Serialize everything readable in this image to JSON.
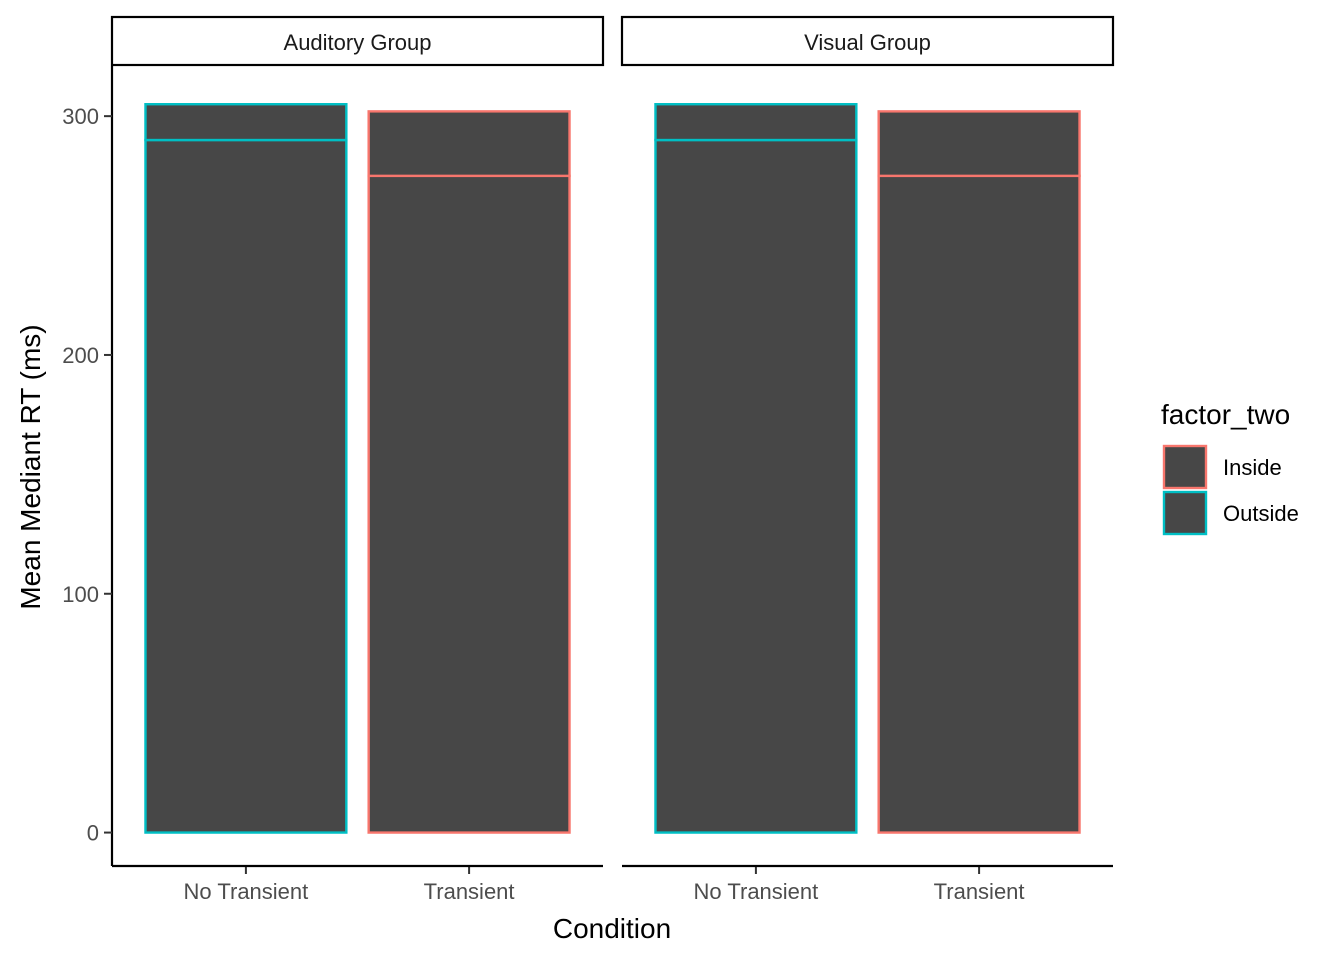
{
  "chart_data": {
    "type": "bar",
    "ylabel": "Mean Mediant RT (ms)",
    "xlabel": "Condition",
    "ylim": [
      -14,
      321
    ],
    "yticks": [
      0,
      100,
      200,
      300
    ],
    "categories": [
      "No Transient",
      "Transient"
    ],
    "facets": [
      {
        "label": "Auditory Group",
        "bars": [
          {
            "category": "No Transient",
            "factor_two": "Outside",
            "segments": [
              290,
              15
            ],
            "total": 305
          },
          {
            "category": "Transient",
            "factor_two": "Inside",
            "segments": [
              275,
              27
            ],
            "total": 302
          }
        ]
      },
      {
        "label": "Visual Group",
        "bars": [
          {
            "category": "No Transient",
            "factor_two": "Outside",
            "segments": [
              290,
              15
            ],
            "total": 305
          },
          {
            "category": "Transient",
            "factor_two": "Inside",
            "segments": [
              275,
              27
            ],
            "total": 302
          }
        ]
      }
    ],
    "legend": {
      "title": "factor_two",
      "placement": "right",
      "items": [
        {
          "label": "Inside",
          "color": "#F8766D"
        },
        {
          "label": "Outside",
          "color": "#00BFC4"
        }
      ]
    },
    "fill_color": "#474747",
    "grid": false
  }
}
